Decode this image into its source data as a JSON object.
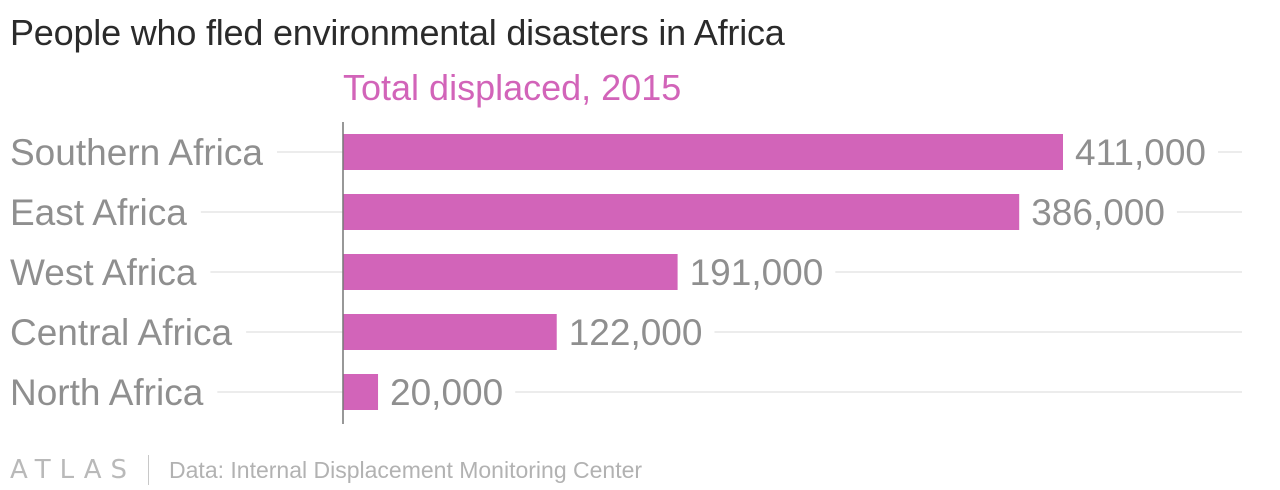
{
  "title": "People who fled environmental disasters in Africa",
  "footer": {
    "logo": "ATLAS",
    "source": "Data: Internal Displacement Monitoring Center"
  },
  "colors": {
    "bar": "#d264b9",
    "series_title": "#d264b9",
    "category_label": "#8f8f8f",
    "value_label": "#8f8f8f",
    "gridline": "#ececec",
    "axis": "#777777"
  },
  "chart_data": {
    "type": "bar",
    "orientation": "horizontal",
    "title": "People who fled environmental disasters in Africa",
    "categories": [
      "Southern Africa",
      "East Africa",
      "West Africa",
      "Central Africa",
      "North Africa"
    ],
    "series": [
      {
        "name": "Total displaced, 2015",
        "values": [
          411000,
          386000,
          191000,
          122000,
          20000
        ],
        "labels": [
          "411,000",
          "386,000",
          "191,000",
          "122,000",
          "20,000"
        ]
      }
    ],
    "xlim": [
      0,
      411000
    ],
    "grid": true,
    "legend": "none"
  }
}
